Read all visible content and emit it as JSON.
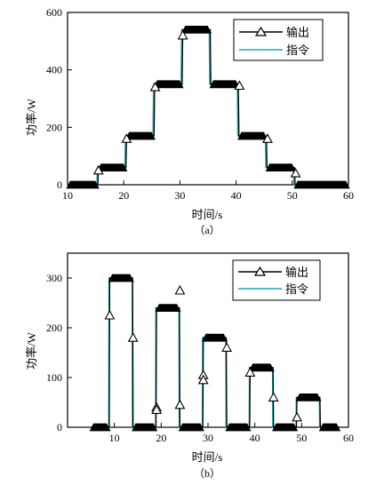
{
  "colors": {
    "output": "#000000",
    "command": "#1aa9b5",
    "axis": "#000000"
  },
  "chart_data": [
    {
      "type": "line",
      "subcaption": "（a）",
      "xlabel": "时间/s",
      "ylabel": "功率/W",
      "xlim": [
        10,
        60
      ],
      "ylim": [
        0,
        600
      ],
      "xticks": [
        10,
        20,
        30,
        40,
        50,
        60
      ],
      "yticks": [
        0,
        200,
        400,
        600
      ],
      "legend_position": "top-right",
      "series": [
        {
          "name": "输出",
          "marker": "triangle",
          "x": [
            10,
            15.4,
            15.5,
            20.4,
            20.5,
            25.4,
            25.5,
            30.4,
            30.5,
            35.4,
            35.5,
            40.4,
            40.5,
            45.4,
            45.5,
            50.4,
            50.5,
            60
          ],
          "y": [
            0,
            0,
            60,
            60,
            170,
            170,
            350,
            350,
            540,
            540,
            350,
            350,
            170,
            170,
            60,
            60,
            0,
            0
          ],
          "markers": [
            [
              15.5,
              50
            ],
            [
              20.5,
              160
            ],
            [
              25.6,
              340
            ],
            [
              30.5,
              520
            ],
            [
              40.6,
              345
            ],
            [
              45.6,
              160
            ],
            [
              50.6,
              40
            ]
          ]
        },
        {
          "name": "指令",
          "x": [
            10,
            15.2,
            15.3,
            20.2,
            20.3,
            25.2,
            25.3,
            30.2,
            30.3,
            35.2,
            35.3,
            40.2,
            40.3,
            45.2,
            45.3,
            50.2,
            50.3,
            60
          ],
          "y": [
            0,
            0,
            60,
            60,
            170,
            170,
            350,
            350,
            540,
            540,
            350,
            350,
            170,
            170,
            60,
            60,
            0,
            0
          ]
        }
      ]
    },
    {
      "type": "line",
      "subcaption": "（b）",
      "xlabel": "时间/s",
      "ylabel": "功率/W",
      "xlim": [
        0,
        60
      ],
      "ylim": [
        0,
        350
      ],
      "xticks": [
        10,
        20,
        30,
        40,
        50,
        60
      ],
      "yticks": [
        0,
        100,
        200,
        300
      ],
      "legend_position": "top-right",
      "series": [
        {
          "name": "输出",
          "marker": "triangle",
          "x": [
            5,
            8.9,
            9,
            13.9,
            14,
            18.9,
            19,
            23.9,
            24,
            28.9,
            29,
            33.9,
            34,
            38.9,
            39,
            43.9,
            44,
            48.9,
            49,
            53.9,
            54,
            58
          ],
          "y": [
            0,
            0,
            300,
            300,
            0,
            0,
            240,
            240,
            0,
            0,
            180,
            180,
            0,
            0,
            120,
            120,
            0,
            0,
            60,
            60,
            0,
            0
          ],
          "markers": [
            [
              9,
              225
            ],
            [
              14,
              180
            ],
            [
              19,
              40
            ],
            [
              19,
              35
            ],
            [
              24,
              275
            ],
            [
              24,
              45
            ],
            [
              29,
              105
            ],
            [
              29,
              95
            ],
            [
              34,
              160
            ],
            [
              39,
              110
            ],
            [
              44,
              60
            ],
            [
              49,
              20
            ]
          ]
        },
        {
          "name": "指令",
          "x": [
            5,
            8.8,
            8.85,
            13.8,
            13.85,
            18.8,
            18.85,
            23.8,
            23.85,
            28.8,
            28.85,
            33.8,
            33.85,
            38.8,
            38.85,
            43.8,
            43.85,
            48.8,
            48.85,
            53.8,
            53.85,
            58
          ],
          "y": [
            0,
            0,
            300,
            300,
            0,
            0,
            240,
            240,
            0,
            0,
            180,
            180,
            0,
            0,
            120,
            120,
            0,
            0,
            60,
            60,
            0,
            0
          ]
        }
      ]
    }
  ]
}
